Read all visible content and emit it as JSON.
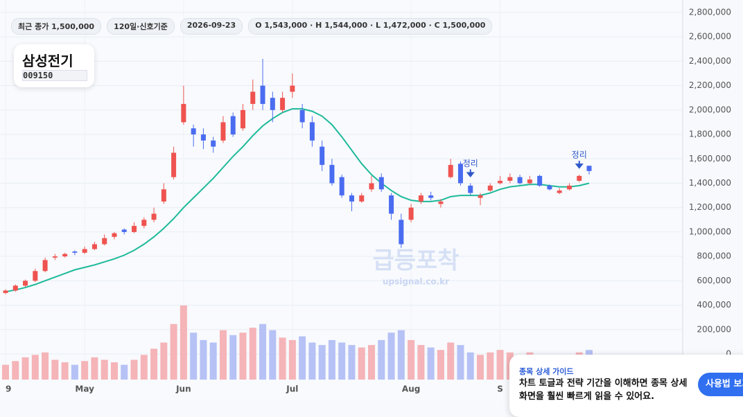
{
  "header": {
    "chips": [
      "최근 종가 1,500,000",
      "120일·신호기준",
      "2026-09-23",
      "O 1,543,000 · H 1,544,000 · L 1,472,000 · C 1,500,000"
    ],
    "name": "삼성전기",
    "code": "009150"
  },
  "watermark": {
    "title": "급등포착",
    "url": "upsignal.co.kr"
  },
  "guide": {
    "title": "종목 상세 가이드",
    "text": "차트 토글과 전략 기간을 이해하면 종목 상세 화면을 훨씬 빠르게 읽을 수 있어요.",
    "button": "사용법 보기"
  },
  "chart_data": {
    "type": "candlestick",
    "categories": [
      "9",
      null,
      null,
      null,
      null,
      null,
      null,
      null,
      "May",
      null,
      null,
      null,
      null,
      null,
      null,
      null,
      null,
      null,
      "Jun",
      null,
      null,
      null,
      null,
      null,
      null,
      null,
      null,
      null,
      null,
      "Jul",
      null,
      null,
      null,
      null,
      null,
      null,
      null,
      null,
      null,
      null,
      null,
      "Aug",
      null,
      null,
      null,
      null,
      null,
      null,
      null,
      null,
      "S",
      null,
      null,
      null,
      null,
      null,
      null,
      null,
      null,
      null
    ],
    "ohlc": [
      [
        500000,
        530000,
        490000,
        520000
      ],
      [
        520000,
        570000,
        510000,
        560000
      ],
      [
        560000,
        610000,
        550000,
        600000
      ],
      [
        600000,
        700000,
        590000,
        680000
      ],
      [
        680000,
        790000,
        670000,
        770000
      ],
      [
        790000,
        820000,
        770000,
        800000
      ],
      [
        800000,
        830000,
        790000,
        820000
      ],
      [
        840000,
        850000,
        810000,
        830000
      ],
      [
        830000,
        880000,
        820000,
        860000
      ],
      [
        860000,
        920000,
        850000,
        900000
      ],
      [
        900000,
        980000,
        890000,
        950000
      ],
      [
        960000,
        1000000,
        940000,
        990000
      ],
      [
        1020000,
        1030000,
        980000,
        1000000
      ],
      [
        1000000,
        1080000,
        990000,
        1050000
      ],
      [
        1050000,
        1120000,
        1030000,
        1100000
      ],
      [
        1100000,
        1200000,
        1080000,
        1150000
      ],
      [
        1250000,
        1400000,
        1230000,
        1350000
      ],
      [
        1450000,
        1700000,
        1430000,
        1650000
      ],
      [
        1900000,
        2200000,
        1880000,
        2050000
      ],
      [
        1850000,
        1880000,
        1700000,
        1800000
      ],
      [
        1800000,
        1850000,
        1680000,
        1750000
      ],
      [
        1750000,
        1780000,
        1650000,
        1700000
      ],
      [
        1750000,
        1950000,
        1730000,
        1900000
      ],
      [
        1950000,
        1980000,
        1780000,
        1800000
      ],
      [
        1850000,
        2050000,
        1830000,
        2000000
      ],
      [
        2050000,
        2250000,
        2000000,
        2150000
      ],
      [
        2200000,
        2420000,
        2000000,
        2050000
      ],
      [
        2100000,
        2150000,
        1900000,
        2000000
      ],
      [
        2000000,
        2150000,
        1980000,
        2100000
      ],
      [
        2150000,
        2300000,
        2100000,
        2200000
      ],
      [
        2000000,
        2050000,
        1850000,
        1900000
      ],
      [
        1900000,
        1950000,
        1700000,
        1750000
      ],
      [
        1700000,
        1750000,
        1500000,
        1550000
      ],
      [
        1550000,
        1600000,
        1380000,
        1400000
      ],
      [
        1450000,
        1470000,
        1280000,
        1300000
      ],
      [
        1300000,
        1320000,
        1170000,
        1250000
      ],
      [
        1250000,
        1320000,
        1240000,
        1300000
      ],
      [
        1350000,
        1460000,
        1330000,
        1400000
      ],
      [
        1450000,
        1480000,
        1330000,
        1350000
      ],
      [
        1300000,
        1320000,
        1100000,
        1150000
      ],
      [
        1100000,
        1150000,
        870000,
        900000
      ],
      [
        1100000,
        1230000,
        1080000,
        1200000
      ],
      [
        1250000,
        1320000,
        1230000,
        1300000
      ],
      [
        1300000,
        1330000,
        1260000,
        1280000
      ],
      [
        1230000,
        1270000,
        1200000,
        1250000
      ],
      [
        1450000,
        1600000,
        1440000,
        1550000
      ],
      [
        1560000,
        1580000,
        1380000,
        1400000
      ],
      [
        1380000,
        1400000,
        1300000,
        1320000
      ],
      [
        1280000,
        1320000,
        1220000,
        1300000
      ],
      [
        1340000,
        1400000,
        1330000,
        1380000
      ],
      [
        1400000,
        1460000,
        1390000,
        1420000
      ],
      [
        1420000,
        1480000,
        1400000,
        1450000
      ],
      [
        1450000,
        1470000,
        1390000,
        1400000
      ],
      [
        1400000,
        1460000,
        1390000,
        1430000
      ],
      [
        1460000,
        1470000,
        1370000,
        1380000
      ],
      [
        1380000,
        1390000,
        1340000,
        1350000
      ],
      [
        1320000,
        1360000,
        1310000,
        1340000
      ],
      [
        1350000,
        1400000,
        1340000,
        1380000
      ],
      [
        1420000,
        1470000,
        1410000,
        1460000
      ],
      [
        1543000,
        1544000,
        1472000,
        1500000
      ]
    ],
    "ma": [
      510000,
      525000,
      545000,
      570000,
      600000,
      630000,
      660000,
      690000,
      710000,
      730000,
      755000,
      780000,
      810000,
      850000,
      900000,
      960000,
      1030000,
      1110000,
      1200000,
      1280000,
      1360000,
      1440000,
      1530000,
      1620000,
      1700000,
      1790000,
      1870000,
      1930000,
      1980000,
      2010000,
      2010000,
      1990000,
      1950000,
      1880000,
      1780000,
      1670000,
      1560000,
      1470000,
      1400000,
      1340000,
      1290000,
      1260000,
      1250000,
      1250000,
      1260000,
      1290000,
      1300000,
      1300000,
      1300000,
      1320000,
      1350000,
      1370000,
      1380000,
      1390000,
      1390000,
      1380000,
      1370000,
      1370000,
      1380000,
      1400000
    ],
    "volume": [
      12,
      15,
      18,
      20,
      22,
      16,
      14,
      12,
      15,
      18,
      16,
      14,
      12,
      16,
      20,
      25,
      30,
      45,
      60,
      38,
      32,
      30,
      40,
      36,
      38,
      42,
      45,
      40,
      34,
      32,
      35,
      30,
      28,
      32,
      30,
      28,
      26,
      28,
      32,
      38,
      40,
      32,
      28,
      26,
      24,
      30,
      28,
      22,
      20,
      22,
      24,
      22,
      20,
      22,
      18,
      16,
      15,
      18,
      22,
      24
    ],
    "annotations": [
      {
        "index": 47,
        "text": "정리"
      },
      {
        "index": 58,
        "text": "정리"
      }
    ],
    "colors": {
      "up": "#ef5350",
      "down": "#4a6cf0",
      "ma": "#1db99a",
      "volume_up": "#f5b4b8",
      "volume_down": "#b6c2f5"
    },
    "ylim": [
      0,
      2800000
    ],
    "yticks": [
      0,
      {
        "value": 200000,
        "label": "200,000"
      },
      {
        "value": 400000,
        "label": "400,000"
      },
      {
        "value": 600000,
        "label": "600,000"
      },
      {
        "value": 800000,
        "label": "800,000"
      },
      {
        "value": 1000000,
        "label": "1,000,000"
      },
      {
        "value": 1200000,
        "label": "1,200,000"
      },
      {
        "value": 1400000,
        "label": "1,400,000"
      },
      {
        "value": 1600000,
        "label": "1,600,000"
      },
      {
        "value": 1800000,
        "label": "1,800,000"
      },
      {
        "value": 2000000,
        "label": "2,000,000"
      },
      {
        "value": 2200000,
        "label": "2,200,000"
      },
      {
        "value": 2400000,
        "label": "2,400,000"
      },
      {
        "value": 2600000,
        "label": "2,600,000"
      },
      {
        "value": 2800000,
        "label": "2,800,000"
      }
    ],
    "grid": true
  }
}
